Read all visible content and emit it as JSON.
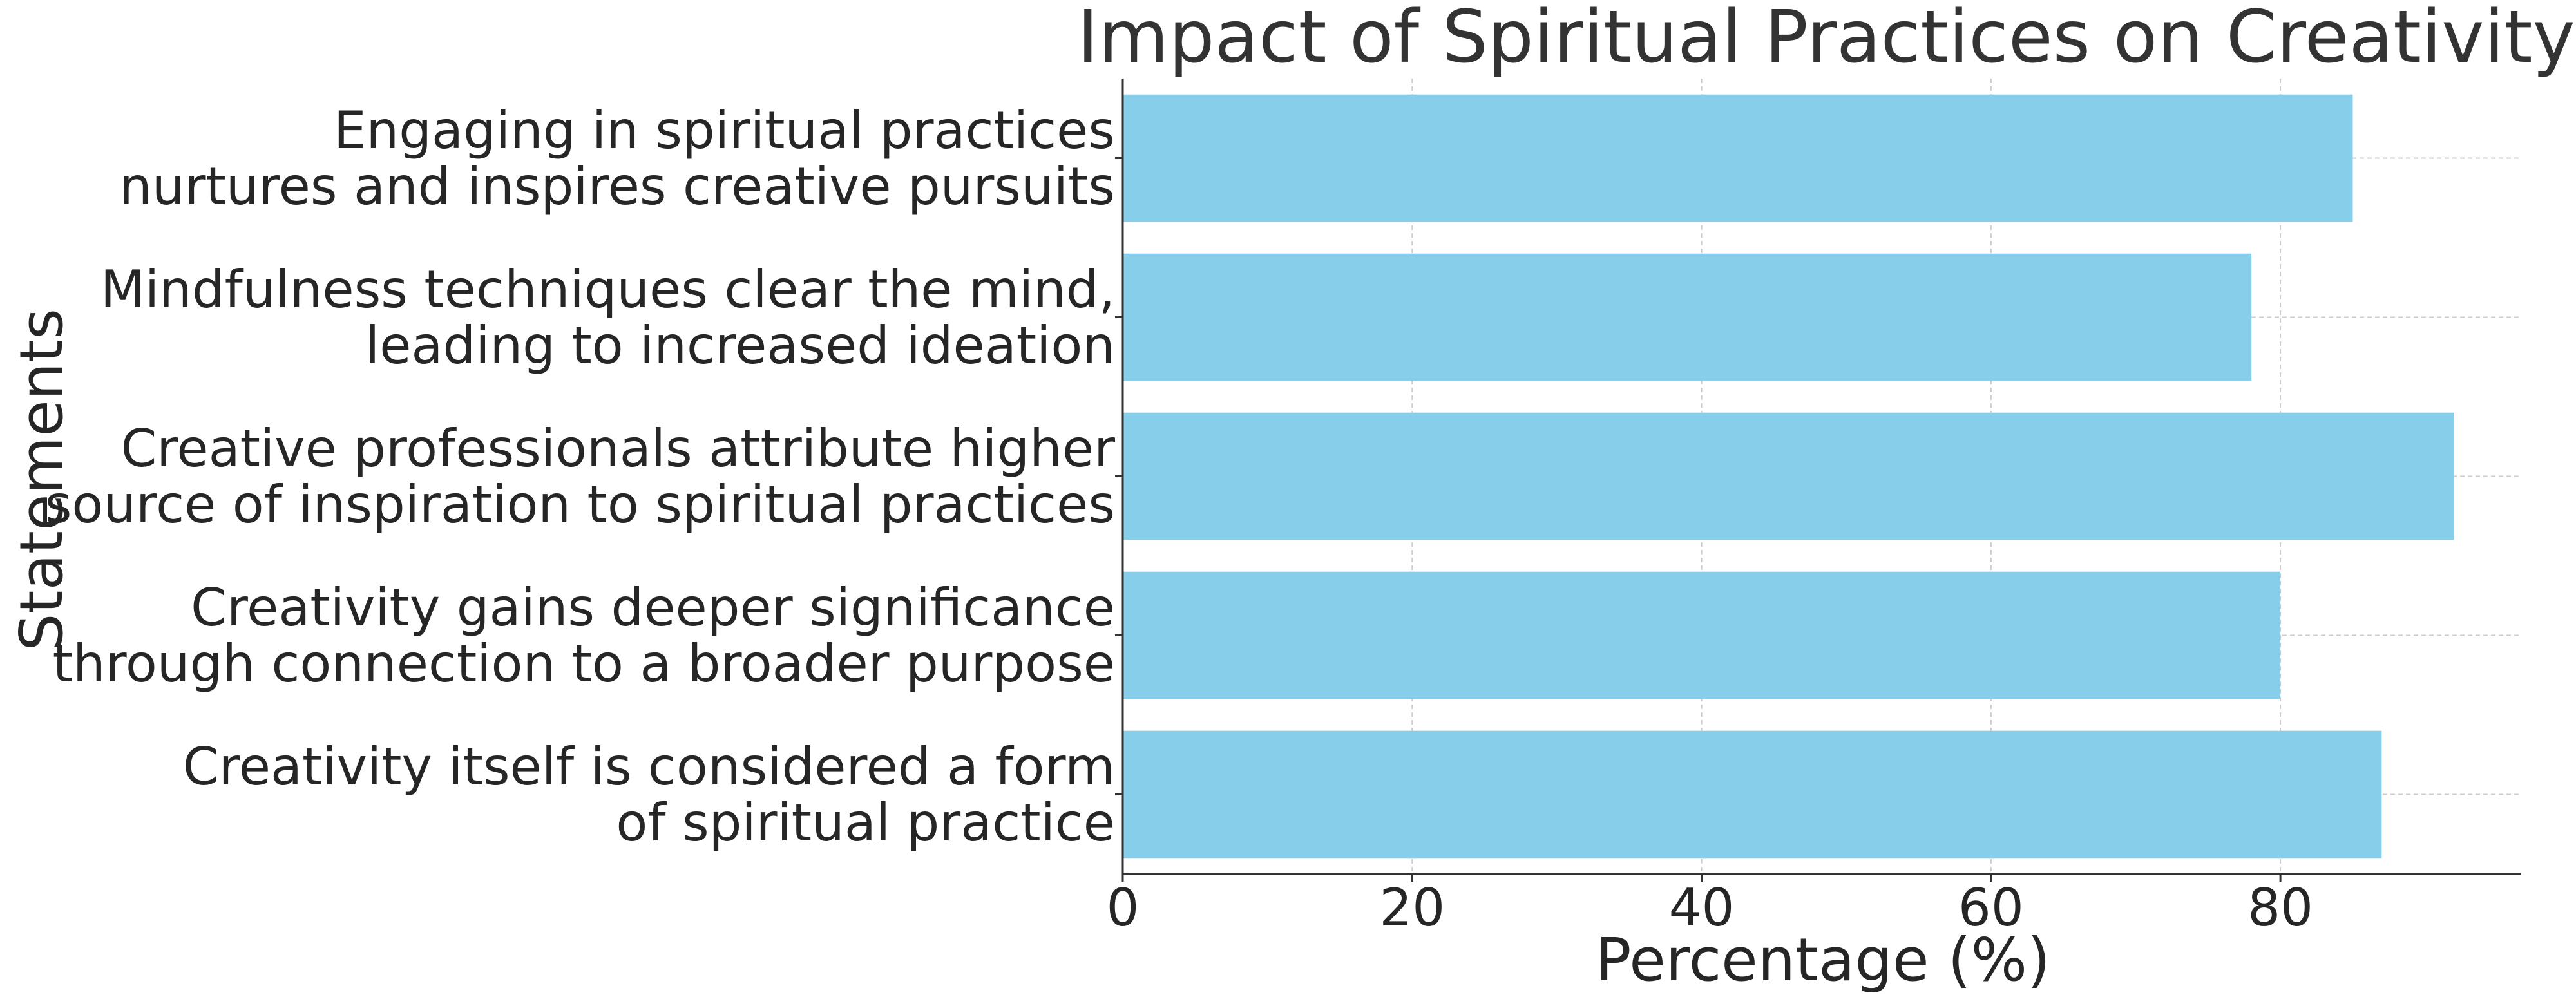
{
  "chart_data": {
    "type": "bar",
    "orientation": "horizontal",
    "title": "Impact of Spiritual Practices on Creativity",
    "xlabel": "Percentage (%)",
    "ylabel": "Statements",
    "categories": [
      "Engaging in spiritual practices\nnurtures and inspires creative pursuits",
      "Mindfulness techniques clear the mind,\nleading to increased ideation",
      "Creative professionals attribute higher\nsource of inspiration to spiritual practices",
      "Creativity gains deeper significance\nthrough connection to a broader purpose",
      "Creativity itself is considered a form\nof spiritual practice"
    ],
    "values": [
      85,
      78,
      92,
      80,
      87
    ],
    "xlim": [
      0,
      96.6
    ],
    "xticks": [
      0,
      20,
      40,
      60,
      80
    ],
    "grid": true,
    "legend": "none",
    "bar_color": "#87ceeb",
    "grid_color": "#cccccc",
    "axis_color": "#333333",
    "text_color": "#262626"
  }
}
